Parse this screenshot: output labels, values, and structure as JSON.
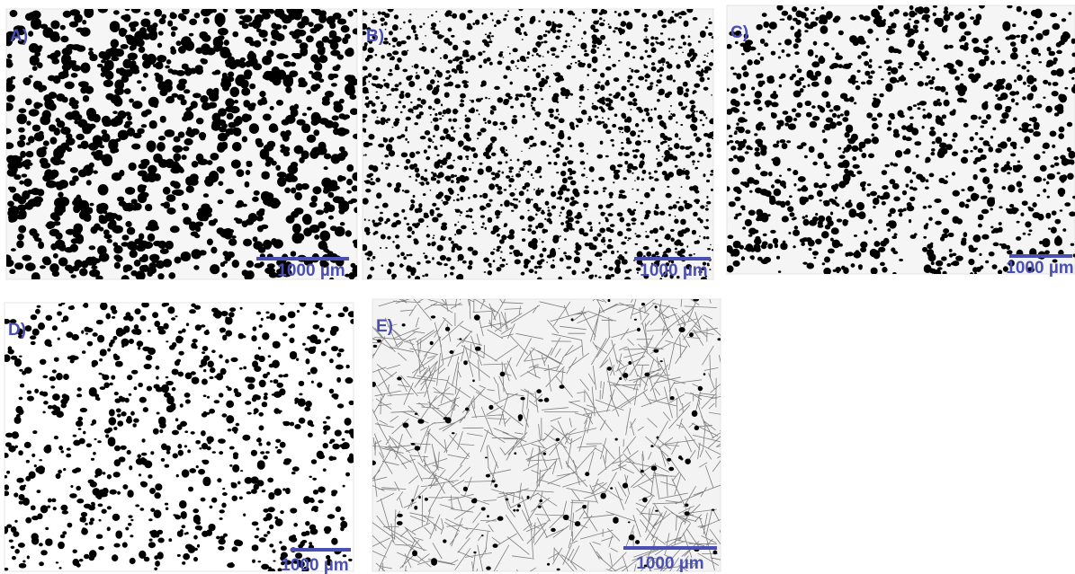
{
  "panels": [
    {
      "label": "A)",
      "scale_bar": "1000 µm"
    },
    {
      "label": "B)",
      "scale_bar": "1000 µm"
    },
    {
      "label": "C)",
      "scale_bar": "1000 µm"
    },
    {
      "label": "D)",
      "scale_bar": "1000 µm"
    },
    {
      "label": "E)",
      "scale_bar": "1000 µm"
    }
  ]
}
